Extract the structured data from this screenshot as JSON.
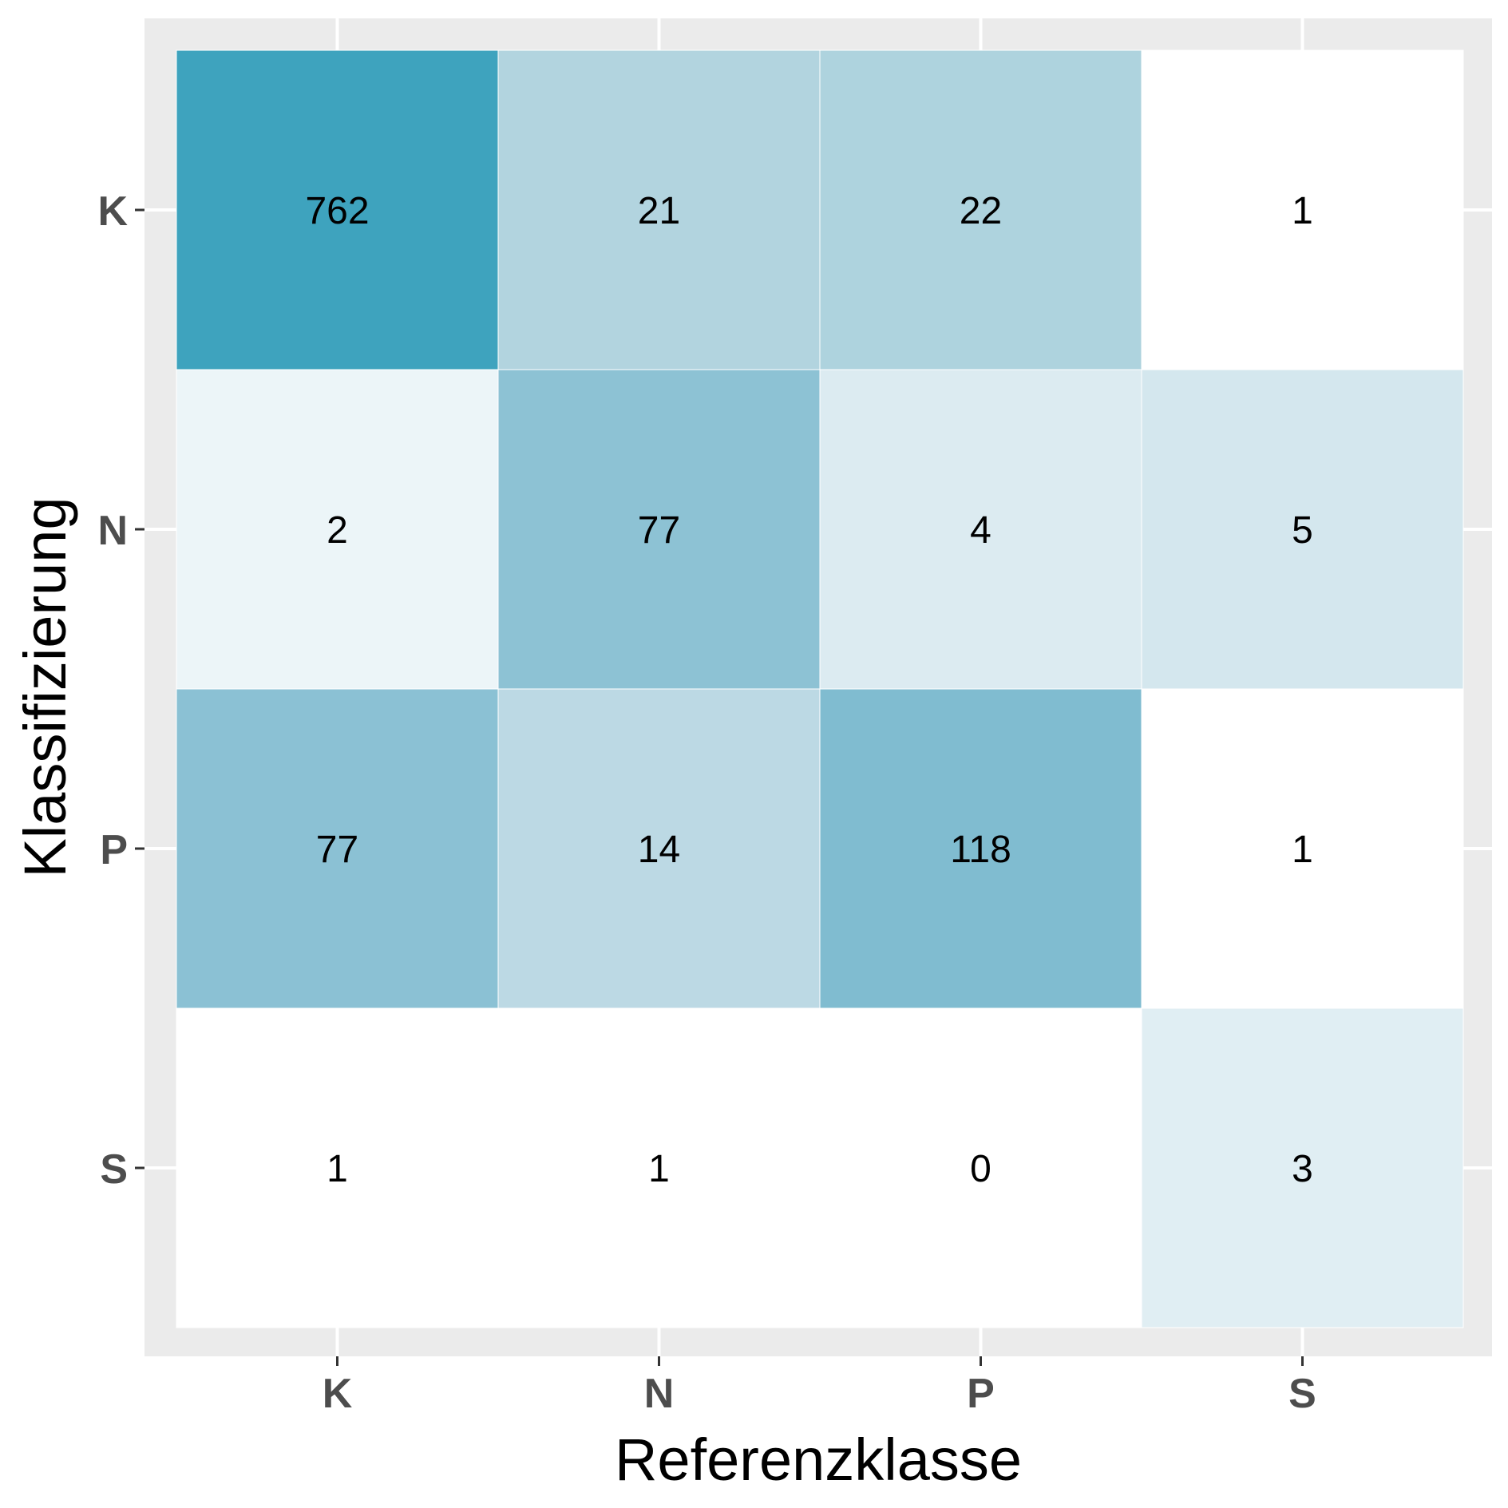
{
  "chart_data": {
    "type": "heatmap",
    "title": "",
    "xlabel": "Referenzklasse",
    "ylabel": "Klassifizierung",
    "x_categories": [
      "K",
      "N",
      "P",
      "S"
    ],
    "y_categories": [
      "K",
      "N",
      "P",
      "S"
    ],
    "cells": [
      {
        "x": "K",
        "y": "K",
        "value": 762
      },
      {
        "x": "N",
        "y": "K",
        "value": 21
      },
      {
        "x": "P",
        "y": "K",
        "value": 22
      },
      {
        "x": "S",
        "y": "K",
        "value": 1
      },
      {
        "x": "K",
        "y": "N",
        "value": 2
      },
      {
        "x": "N",
        "y": "N",
        "value": 77
      },
      {
        "x": "P",
        "y": "N",
        "value": 4
      },
      {
        "x": "S",
        "y": "N",
        "value": 5
      },
      {
        "x": "K",
        "y": "P",
        "value": 77
      },
      {
        "x": "N",
        "y": "P",
        "value": 14
      },
      {
        "x": "P",
        "y": "P",
        "value": 118
      },
      {
        "x": "S",
        "y": "P",
        "value": 1
      },
      {
        "x": "K",
        "y": "S",
        "value": 1
      },
      {
        "x": "N",
        "y": "S",
        "value": 1
      },
      {
        "x": "P",
        "y": "S",
        "value": 0
      },
      {
        "x": "S",
        "y": "S",
        "value": 3
      }
    ],
    "fill_colors": [
      [
        "#3ea3be",
        "#b2d4df",
        "#aed3de",
        "#ffffff"
      ],
      [
        "#ecf5f8",
        "#8dc2d4",
        "#dcebf1",
        "#d4e7ee"
      ],
      [
        "#8bc1d4",
        "#bcd9e4",
        "#80bcd0",
        "#ffffff"
      ],
      [
        "#ffffff",
        "#ffffff",
        "#ffffff",
        "#e0eef3"
      ]
    ],
    "grid": true,
    "legend": "none"
  }
}
